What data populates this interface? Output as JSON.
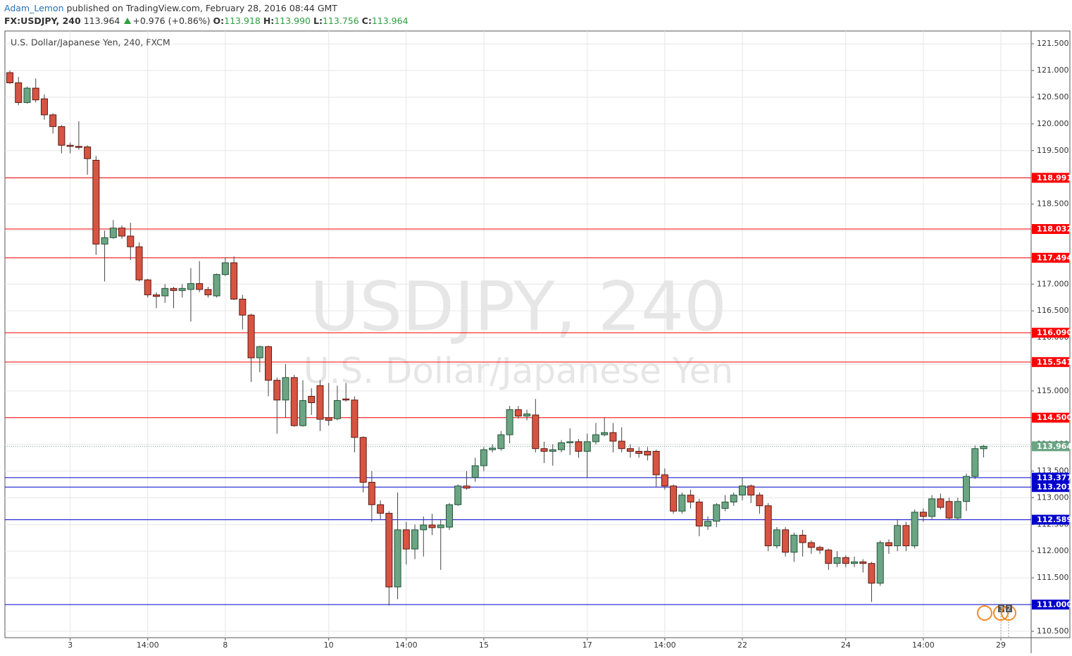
{
  "header": {
    "author": "Adam_Lemon",
    "published": "published on TradingView.com, February 28, 2016 08:44 GMT",
    "symbol": "FX:USDJPY, 240",
    "last": "113.964",
    "change": "+0.976 (+0.86%)",
    "ohlc": [
      {
        "label": "O:",
        "value": "113.918"
      },
      {
        "label": "H:",
        "value": "113.990"
      },
      {
        "label": "L:",
        "value": "113.756"
      },
      {
        "label": "C:",
        "value": "113.964"
      }
    ]
  },
  "chart_data": {
    "type": "candlestick",
    "title": "U.S. Dollar/Japanese Yen, 240, FXCM",
    "watermark": [
      "USDJPY, 240",
      "U.S. Dollar/Japanese Yen"
    ],
    "categories": [
      null,
      null,
      null,
      null,
      null,
      null,
      null,
      "3",
      null,
      null,
      null,
      null,
      null,
      null,
      null,
      null,
      "14:00",
      null,
      null,
      null,
      null,
      null,
      null,
      null,
      null,
      "8",
      null,
      null,
      null,
      null,
      null,
      null,
      null,
      null,
      null,
      null,
      null,
      "10",
      null,
      null,
      null,
      null,
      null,
      null,
      null,
      null,
      "14:00",
      null,
      null,
      null,
      null,
      null,
      null,
      null,
      null,
      "15",
      null,
      null,
      null,
      null,
      null,
      null,
      null,
      null,
      null,
      null,
      null,
      "17",
      null,
      null,
      null,
      null,
      null,
      null,
      null,
      null,
      "14:00",
      null,
      null,
      null,
      null,
      null,
      null,
      null,
      null,
      "22",
      null,
      null,
      null,
      null,
      null,
      null,
      null,
      null,
      null,
      null,
      null,
      "24",
      null,
      null,
      null,
      null,
      null,
      null,
      null,
      null,
      "14:00",
      null,
      null,
      null,
      null,
      null,
      null,
      null,
      null,
      "29"
    ],
    "open": [
      120.96,
      120.77,
      120.4,
      120.67,
      120.47,
      120.17,
      119.95,
      119.6,
      119.58,
      119.57,
      119.32,
      117.75,
      117.87,
      118.05,
      117.9,
      117.7,
      117.08,
      116.8,
      116.78,
      116.92,
      116.88,
      116.9,
      117.01,
      116.9,
      116.78,
      117.18,
      117.4,
      116.72,
      116.42,
      115.62,
      115.83,
      115.2,
      114.83,
      115.25,
      114.35,
      114.9,
      115.1,
      114.5,
      114.48,
      114.85,
      114.83,
      114.13,
      113.29,
      112.87,
      112.71,
      111.33,
      112.4,
      112.04,
      112.4,
      112.49,
      112.44,
      112.45,
      112.87,
      113.22,
      113.38,
      113.6,
      113.9,
      113.92,
      114.18,
      114.65,
      114.53,
      114.55,
      113.92,
      113.87,
      113.9,
      114.03,
      114.05,
      113.87,
      114.05,
      114.18,
      114.22,
      114.06,
      113.92,
      113.87,
      113.87,
      113.87,
      113.43,
      113.22,
      112.75,
      113.05,
      112.92,
      112.47,
      112.56,
      112.8,
      112.92,
      113.05,
      113.22,
      113.05,
      112.85,
      112.1,
      112.4,
      111.98,
      112.3,
      112.16,
      112.07,
      112.02,
      111.77,
      111.88,
      111.77,
      111.8,
      111.77,
      111.4,
      112.16,
      112.1,
      112.48,
      112.1,
      112.73,
      112.65,
      112.98,
      112.93,
      112.62,
      112.93,
      113.4,
      113.918,
      null,
      null
    ],
    "high": [
      121.0,
      120.88,
      120.7,
      120.85,
      120.55,
      120.2,
      119.98,
      119.65,
      120.05,
      119.6,
      119.4,
      118.0,
      118.2,
      118.1,
      118.15,
      117.78,
      117.1,
      116.85,
      117.0,
      116.95,
      117.0,
      117.3,
      117.43,
      116.95,
      117.2,
      117.5,
      117.52,
      116.8,
      116.45,
      115.85,
      115.85,
      115.25,
      115.5,
      115.3,
      115.2,
      115.05,
      115.2,
      115.15,
      115.1,
      115.15,
      114.9,
      114.15,
      113.5,
      112.95,
      112.75,
      113.1,
      112.55,
      112.5,
      112.65,
      112.7,
      112.6,
      112.9,
      113.25,
      113.5,
      113.75,
      113.95,
      114.0,
      114.25,
      114.72,
      114.72,
      114.65,
      114.85,
      114.05,
      114.0,
      114.08,
      114.3,
      114.1,
      114.2,
      114.4,
      114.5,
      114.4,
      114.32,
      114.0,
      113.95,
      113.95,
      113.9,
      113.55,
      113.25,
      113.1,
      113.15,
      112.98,
      112.65,
      112.9,
      113.05,
      113.1,
      113.38,
      113.25,
      113.1,
      112.9,
      112.45,
      112.45,
      112.35,
      112.4,
      112.2,
      112.1,
      112.05,
      112.0,
      111.92,
      111.9,
      111.85,
      111.8,
      112.2,
      112.22,
      112.6,
      112.55,
      112.78,
      112.8,
      113.05,
      113.08,
      113.0,
      113.0,
      113.45,
      113.98,
      113.99,
      null,
      null
    ],
    "low": [
      120.75,
      120.35,
      120.38,
      120.4,
      120.08,
      119.82,
      119.45,
      119.45,
      119.52,
      119.05,
      117.55,
      117.05,
      117.85,
      117.85,
      117.45,
      117.05,
      116.75,
      116.55,
      116.65,
      116.55,
      116.75,
      116.3,
      116.85,
      116.75,
      116.75,
      117.15,
      116.7,
      116.15,
      115.17,
      115.35,
      114.9,
      114.2,
      114.5,
      114.33,
      114.33,
      114.55,
      114.25,
      114.35,
      114.45,
      114.8,
      113.85,
      113.1,
      112.55,
      112.6,
      110.98,
      111.1,
      111.75,
      111.85,
      111.9,
      112.3,
      111.65,
      112.4,
      112.85,
      113.15,
      113.3,
      113.5,
      113.85,
      113.88,
      114.02,
      114.48,
      114.45,
      113.85,
      113.65,
      113.6,
      113.85,
      113.8,
      113.75,
      113.38,
      114.0,
      114.15,
      113.85,
      113.85,
      113.75,
      113.75,
      113.7,
      113.2,
      113.15,
      112.7,
      112.7,
      112.8,
      112.28,
      112.4,
      112.45,
      112.75,
      112.85,
      112.95,
      112.9,
      112.7,
      112.0,
      112.05,
      111.9,
      111.8,
      111.9,
      111.95,
      111.95,
      111.65,
      111.7,
      111.7,
      111.7,
      111.6,
      111.05,
      111.35,
      111.95,
      112.0,
      112.0,
      112.05,
      112.55,
      112.6,
      112.78,
      112.58,
      112.58,
      112.75,
      113.35,
      113.756,
      null,
      null
    ],
    "close": [
      120.77,
      120.4,
      120.67,
      120.45,
      120.17,
      119.95,
      119.6,
      119.58,
      119.56,
      119.35,
      117.75,
      117.87,
      118.05,
      117.9,
      117.7,
      117.08,
      116.8,
      116.77,
      116.92,
      116.88,
      116.92,
      117.01,
      116.9,
      116.8,
      117.18,
      117.4,
      116.72,
      116.42,
      115.62,
      115.83,
      115.2,
      114.83,
      115.25,
      114.35,
      114.82,
      114.78,
      114.47,
      114.45,
      114.82,
      114.83,
      114.13,
      113.29,
      112.87,
      112.71,
      111.33,
      112.4,
      112.04,
      112.4,
      112.49,
      112.44,
      112.49,
      112.87,
      113.22,
      113.18,
      113.6,
      113.9,
      113.93,
      114.18,
      114.65,
      114.53,
      114.57,
      113.92,
      113.87,
      113.9,
      114.03,
      114.05,
      113.87,
      114.05,
      114.18,
      114.22,
      114.06,
      113.92,
      113.87,
      113.83,
      113.8,
      113.43,
      113.22,
      112.75,
      113.05,
      112.92,
      112.47,
      112.56,
      112.87,
      112.92,
      113.05,
      113.22,
      113.05,
      112.85,
      112.1,
      112.4,
      111.98,
      112.3,
      112.16,
      112.07,
      112.02,
      111.77,
      111.88,
      111.77,
      111.8,
      111.77,
      111.4,
      112.16,
      112.1,
      112.48,
      112.1,
      112.73,
      112.65,
      112.98,
      112.82,
      112.62,
      112.93,
      113.4,
      113.92,
      113.964,
      null,
      null
    ],
    "up_color": "#6ba583",
    "down_color": "#d75442",
    "grid": true,
    "ylim": [
      110.38,
      121.74
    ],
    "yticks": [
      {
        "value": 110.5,
        "label": "110.500"
      },
      {
        "value": 111,
        "label": "111.000"
      },
      {
        "value": 111.5,
        "label": "111.500"
      },
      {
        "value": 112,
        "label": "112.000"
      },
      {
        "value": 112.5,
        "label": "112.500"
      },
      {
        "value": 113,
        "label": "113.000"
      },
      {
        "value": 113.5,
        "label": "113.500"
      },
      {
        "value": 114,
        "label": "114.000"
      },
      {
        "value": 114.5,
        "label": "114.500"
      },
      {
        "value": 115,
        "label": "115.000"
      },
      {
        "value": 115.5,
        "label": "115.500"
      },
      {
        "value": 116,
        "label": "116.000"
      },
      {
        "value": 116.5,
        "label": "116.500"
      },
      {
        "value": 117,
        "label": "117.000"
      },
      {
        "value": 117.5,
        "label": "117.500"
      },
      {
        "value": 118,
        "label": "118.000"
      },
      {
        "value": 118.5,
        "label": "118.500"
      },
      {
        "value": 119,
        "label": "119.000"
      },
      {
        "value": 119.5,
        "label": "119.500"
      },
      {
        "value": 120,
        "label": "120.000"
      },
      {
        "value": 120.5,
        "label": "120.500"
      },
      {
        "value": 121,
        "label": "121.000"
      },
      {
        "value": 121.5,
        "label": "121.500"
      }
    ],
    "levels": [
      {
        "value": 118.991,
        "label": "118.991",
        "color": "#ff0000"
      },
      {
        "value": 118.032,
        "label": "118.032",
        "color": "#ff0000"
      },
      {
        "value": 117.494,
        "label": "117.494",
        "color": "#ff0000"
      },
      {
        "value": 116.09,
        "label": "116.090",
        "color": "#ff0000"
      },
      {
        "value": 115.541,
        "label": "115.541",
        "color": "#ff0000"
      },
      {
        "value": 114.5,
        "label": "114.500",
        "color": "#ff0000"
      },
      {
        "value": 113.377,
        "label": "113.377",
        "color": "#0000cc"
      },
      {
        "value": 113.201,
        "label": "113.201",
        "color": "#0000cc"
      },
      {
        "value": 112.589,
        "label": "112.589",
        "color": "#0000cc"
      },
      {
        "value": 111,
        "label": "111.000",
        "color": "#0000cc"
      }
    ],
    "last_price": {
      "value": 113.964,
      "label": "113.964"
    },
    "events": [
      "3",
      "2"
    ]
  }
}
